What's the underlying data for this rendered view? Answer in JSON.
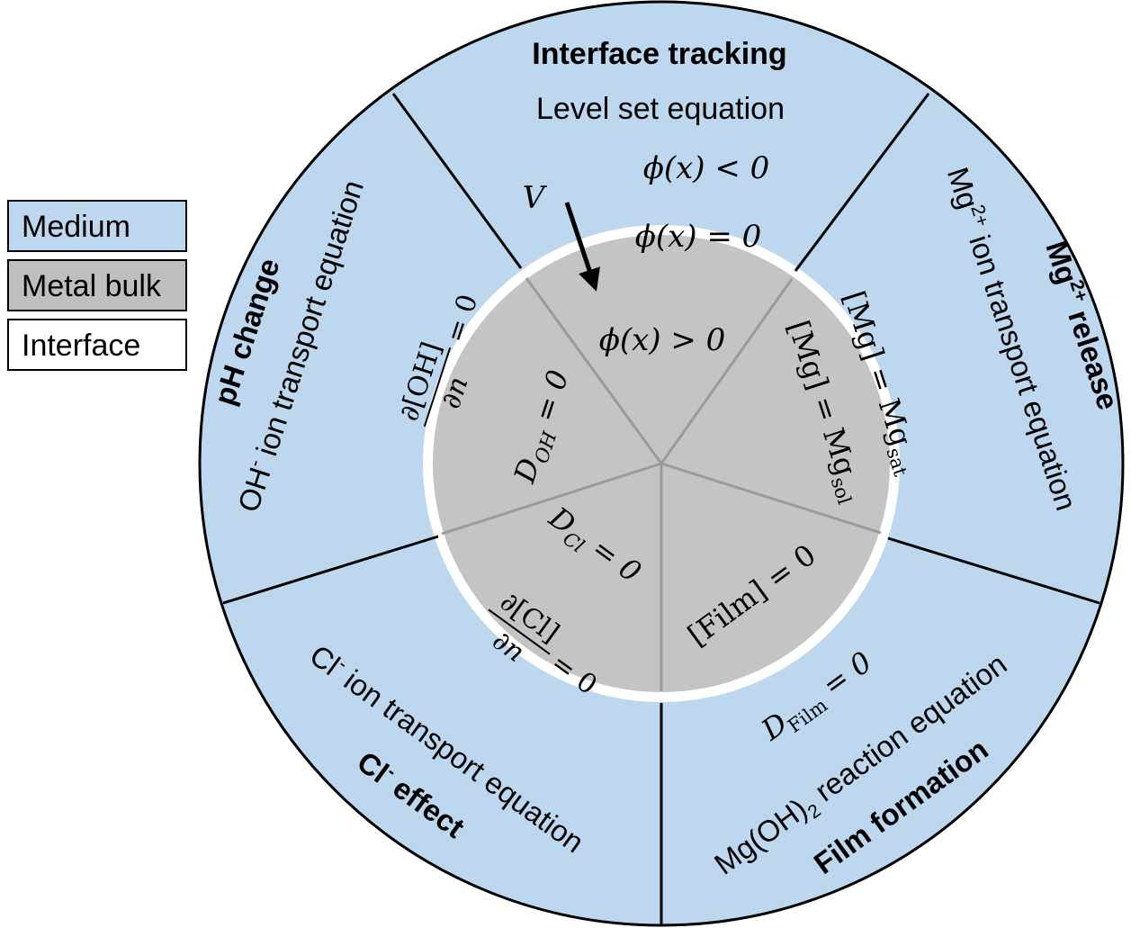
{
  "legend": [
    {
      "label": "Medium",
      "color": "#bdd7ee"
    },
    {
      "label": "Metal bulk",
      "color": "#bfbfbf"
    },
    {
      "label": "Interface",
      "color": "#ffffff"
    }
  ],
  "colors": {
    "medium": "#bdd7ee",
    "metal": "#c4c4c4",
    "interface": "#ffffff",
    "divider_inner": "#9a9a9a",
    "divider_outer": "#000000"
  },
  "sectors": {
    "interface_tracking": {
      "title": "Interface tracking",
      "equation": "Level set equation",
      "phi_outside": "ϕ(x) < 0",
      "phi_interface": "ϕ(x) = 0",
      "phi_inside": "ϕ(x) > 0",
      "velocity": "V"
    },
    "mg_release": {
      "title_main": "Mg",
      "title_sup": "2+",
      "title_rest": " release",
      "eq_main": "Mg",
      "eq_sup": "2+",
      "eq_rest": " ion transport equation",
      "bc_interface_main": "[Mg] = Mg",
      "bc_interface_sub": "sat",
      "bc_bulk_main": "[Mg] = Mg",
      "bc_bulk_sub": "sol"
    },
    "film_formation": {
      "title": "Film formation",
      "eq_main": "Mg(OH)",
      "eq_sub": "2",
      "eq_rest": " reaction equation",
      "bc_medium_main": "D",
      "bc_medium_sub": "Film",
      "bc_medium_rest": " = 0",
      "bc_bulk": "[Film] = 0"
    },
    "cl_effect": {
      "title_main": "Cl",
      "title_sup": "-",
      "title_rest": " effect",
      "eq_main": "Cl",
      "eq_sup": "-",
      "eq_rest": " ion transport equation",
      "bc_bulk_main": "D",
      "bc_bulk_sub": "Cl",
      "bc_bulk_rest": " = 0",
      "bc_interface_num": "∂[Cl]",
      "bc_interface_den": "∂n",
      "bc_interface_rest": "= 0"
    },
    "ph_change": {
      "title": "pH change",
      "eq_main": "OH",
      "eq_sup": "-",
      "eq_rest": " ion transport equation",
      "bc_bulk_main": "D",
      "bc_bulk_sub": "OH",
      "bc_bulk_rest": " = 0",
      "bc_interface_num": "∂[OH]",
      "bc_interface_den": "∂n",
      "bc_interface_rest": "= 0"
    }
  }
}
